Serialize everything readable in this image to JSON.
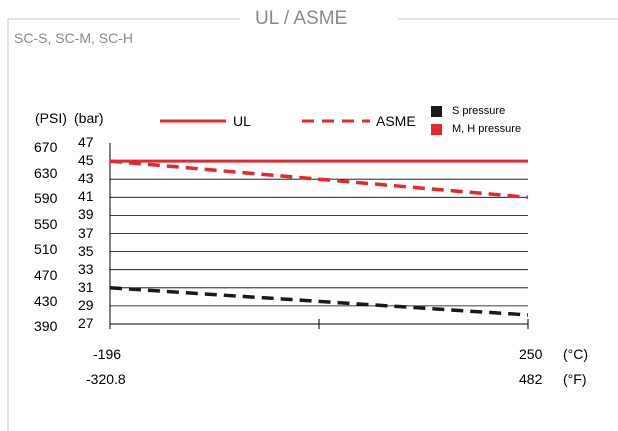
{
  "header": {
    "title": "UL / ASME",
    "models": "SC-S, SC-M, SC-H"
  },
  "chart_data": {
    "type": "line",
    "title": "UL / ASME",
    "y_units": {
      "left": "(PSI)",
      "right": "(bar)"
    },
    "y_ticks_bar": [
      "47",
      "45",
      "43",
      "41",
      "39",
      "37",
      "35",
      "33",
      "31",
      "29",
      "27"
    ],
    "y_ticks_psi": [
      "670",
      "630",
      "590",
      "550",
      "510",
      "470",
      "430",
      "390"
    ],
    "ylim": [
      27,
      47
    ],
    "x_ticks": [
      {
        "c": "-196",
        "f": "-320.8"
      },
      {
        "c": "250",
        "f": "482"
      }
    ],
    "x_units": {
      "c": "(°C)",
      "f": "(°F)"
    },
    "xlim": [
      -196,
      250
    ],
    "grid": true,
    "legend": {
      "ul": "UL",
      "asme": "ASME",
      "s_pressure": "S pressure",
      "mh_pressure": "M, H pressure"
    },
    "colors": {
      "mh": "#e8262d",
      "s": "#1a1a1a",
      "frame": "#c8c8c8"
    },
    "series": [
      {
        "name": "UL",
        "group": "M, H pressure",
        "style": "solid",
        "x": [
          -196,
          250
        ],
        "y": [
          45,
          45
        ]
      },
      {
        "name": "ASME",
        "group": "M, H pressure",
        "style": "dashed",
        "x": [
          -196,
          250
        ],
        "y": [
          45,
          41
        ]
      },
      {
        "name": "ASME",
        "group": "S pressure",
        "style": "dashed",
        "x": [
          -196,
          250
        ],
        "y": [
          31,
          28
        ]
      }
    ]
  }
}
